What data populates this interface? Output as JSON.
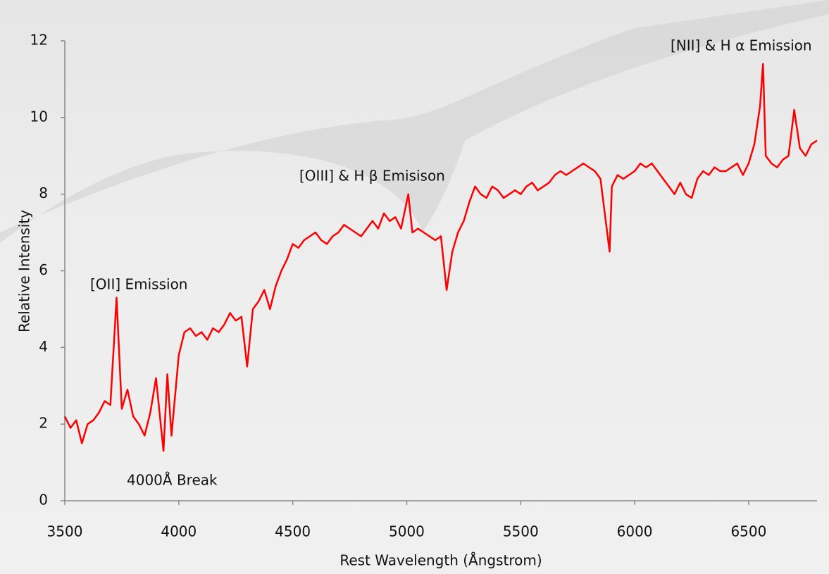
{
  "chart_data": {
    "type": "line",
    "x_label": "Rest Wavelength (Ångstrom)",
    "y_label": "Relative Intensity",
    "annotations": [
      "[OII] Emission",
      "4000Å Break",
      "[OIII] & H β Emisison",
      "[NII] & H α Emission"
    ],
    "color": "#ff0000",
    "xlim": [
      3500,
      6800
    ],
    "ylim": [
      0,
      12
    ],
    "xticks": [
      3500,
      4000,
      4500,
      5000,
      5500,
      6000,
      6500
    ],
    "yticks": [
      0,
      2,
      4,
      6,
      8,
      10,
      12
    ],
    "x": [
      3500,
      3525,
      3550,
      3575,
      3600,
      3625,
      3650,
      3675,
      3700,
      3727,
      3750,
      3775,
      3800,
      3825,
      3850,
      3875,
      3900,
      3933,
      3950,
      3968,
      4000,
      4025,
      4050,
      4075,
      4100,
      4125,
      4150,
      4175,
      4200,
      4225,
      4250,
      4275,
      4300,
      4325,
      4350,
      4375,
      4400,
      4425,
      4450,
      4475,
      4500,
      4525,
      4550,
      4575,
      4600,
      4625,
      4650,
      4675,
      4700,
      4725,
      4750,
      4775,
      4800,
      4825,
      4850,
      4875,
      4900,
      4925,
      4950,
      4975,
      5007,
      5025,
      5050,
      5075,
      5100,
      5125,
      5150,
      5175,
      5200,
      5225,
      5250,
      5275,
      5300,
      5325,
      5350,
      5375,
      5400,
      5425,
      5450,
      5475,
      5500,
      5525,
      5550,
      5575,
      5600,
      5625,
      5650,
      5675,
      5700,
      5725,
      5750,
      5775,
      5800,
      5825,
      5850,
      5890,
      5900,
      5925,
      5950,
      5975,
      6000,
      6025,
      6050,
      6075,
      6100,
      6125,
      6150,
      6175,
      6200,
      6225,
      6250,
      6275,
      6300,
      6325,
      6350,
      6375,
      6400,
      6425,
      6450,
      6475,
      6500,
      6525,
      6550,
      6563,
      6575,
      6600,
      6625,
      6650,
      6675,
      6700,
      6725,
      6750,
      6775,
      6800
    ],
    "values": [
      2.2,
      1.9,
      2.1,
      1.5,
      2.0,
      2.1,
      2.3,
      2.6,
      2.5,
      5.3,
      2.4,
      2.9,
      2.2,
      2.0,
      1.7,
      2.3,
      3.2,
      1.3,
      3.3,
      1.7,
      3.8,
      4.4,
      4.5,
      4.3,
      4.4,
      4.2,
      4.5,
      4.4,
      4.6,
      4.9,
      4.7,
      4.8,
      3.5,
      5.0,
      5.2,
      5.5,
      5.0,
      5.6,
      6.0,
      6.3,
      6.7,
      6.6,
      6.8,
      6.9,
      7.0,
      6.8,
      6.7,
      6.9,
      7.0,
      7.2,
      7.1,
      7.0,
      6.9,
      7.1,
      7.3,
      7.1,
      7.5,
      7.3,
      7.4,
      7.1,
      8.0,
      7.0,
      7.1,
      7.0,
      6.9,
      6.8,
      6.9,
      5.5,
      6.5,
      7.0,
      7.3,
      7.8,
      8.2,
      8.0,
      7.9,
      8.2,
      8.1,
      7.9,
      8.0,
      8.1,
      8.0,
      8.2,
      8.3,
      8.1,
      8.2,
      8.3,
      8.5,
      8.6,
      8.5,
      8.6,
      8.7,
      8.8,
      8.7,
      8.6,
      8.4,
      6.5,
      8.2,
      8.5,
      8.4,
      8.5,
      8.6,
      8.8,
      8.7,
      8.8,
      8.6,
      8.4,
      8.2,
      8.0,
      8.3,
      8.0,
      7.9,
      8.4,
      8.6,
      8.5,
      8.7,
      8.6,
      8.6,
      8.7,
      8.8,
      8.5,
      8.8,
      9.3,
      10.3,
      11.4,
      9.0,
      8.8,
      8.7,
      8.9,
      9.0,
      10.2,
      9.2,
      9.0,
      9.3,
      9.4
    ]
  }
}
